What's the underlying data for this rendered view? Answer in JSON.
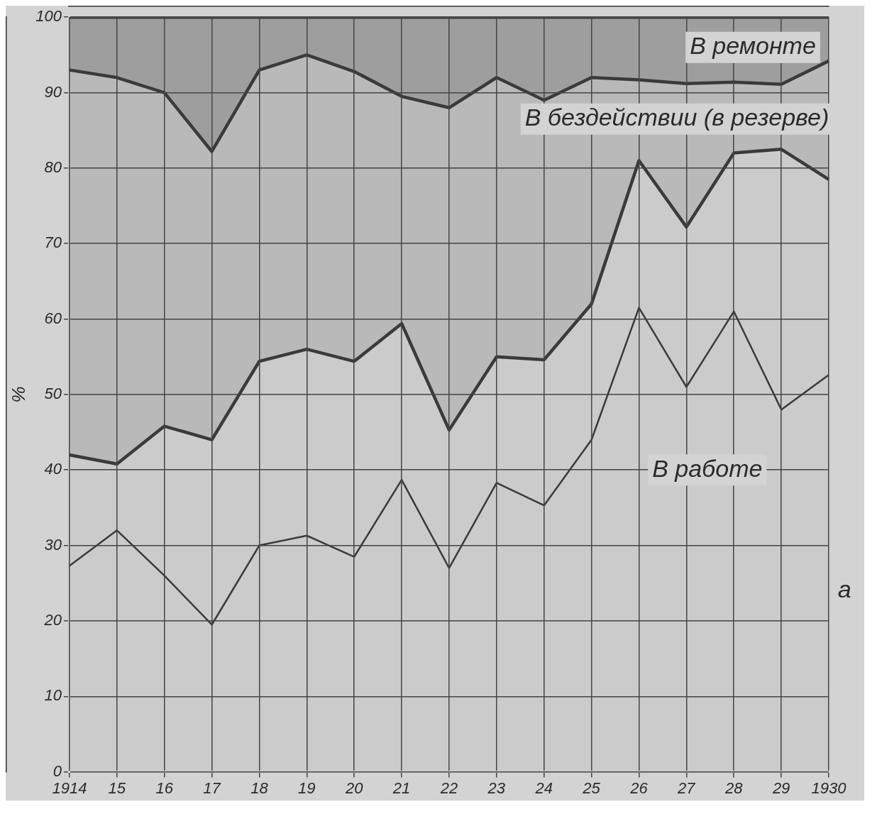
{
  "chart_data": {
    "type": "area",
    "ylabel": "%",
    "stacked": true,
    "categories": [
      "1914",
      "15",
      "16",
      "17",
      "18",
      "19",
      "20",
      "21",
      "22",
      "23",
      "24",
      "25",
      "26",
      "27",
      "28",
      "29",
      "1930"
    ],
    "series": [
      {
        "color": "#cbcbcb",
        "values": [
          42,
          40.8,
          45.8,
          44,
          54.4,
          56,
          54.4,
          59.4,
          45.3,
          55,
          54.6,
          62,
          81,
          72.2,
          82,
          82.5,
          78.5
        ]
      },
      {
        "color": "#b9b9b9",
        "values": [
          51,
          51.2,
          44.2,
          38.2,
          38.6,
          39,
          38.4,
          30.1,
          42.7,
          37,
          34.4,
          30,
          10.7,
          19,
          9.4,
          8.6,
          15.7
        ]
      },
      {
        "color": "#9e9e9e",
        "values": [
          7,
          8,
          10,
          17.8,
          7,
          5,
          7.2,
          10.5,
          12,
          8,
          11,
          8,
          8.3,
          8.8,
          8.6,
          8.9,
          5.8
        ]
      },
      {
        "type": "line",
        "color": "#3a3a3a",
        "values": [
          27.3,
          32,
          26,
          19.5,
          30,
          31.3,
          28.5,
          38.7,
          27,
          38.3,
          35.3,
          44,
          61.5,
          51,
          61,
          48,
          52.6
        ]
      }
    ],
    "ylim": [
      0,
      100
    ],
    "yticks": [
      0,
      10,
      20,
      30,
      40,
      50,
      60,
      70,
      80,
      90,
      100
    ],
    "grid": true,
    "annotations": [
      "В ремонте",
      "В бездействии (в резерве)",
      "В работе",
      "a"
    ]
  }
}
